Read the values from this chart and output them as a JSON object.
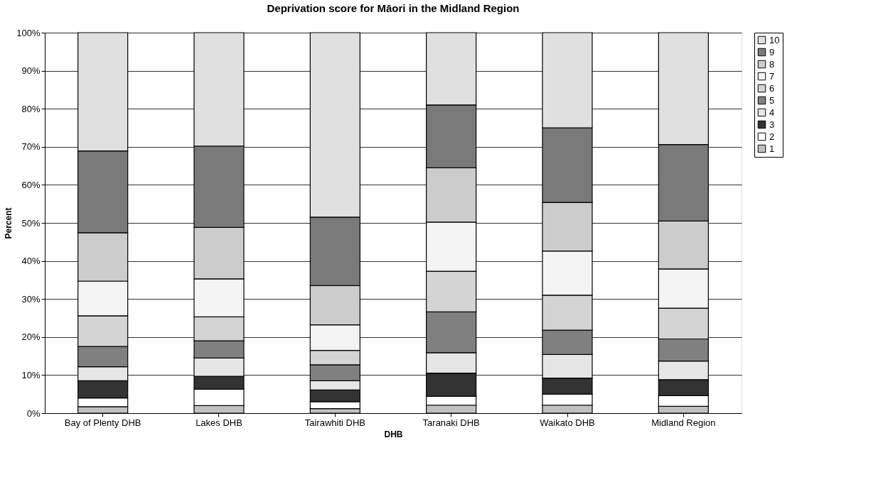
{
  "chart_data": {
    "type": "bar",
    "title": "Deprivation score for Māori in the Midland Region",
    "xlabel": "DHB",
    "ylabel": "Percent",
    "categories": [
      "Bay of Plenty DHB",
      "Lakes DHB",
      "Tairawhiti DHB",
      "Taranaki DHB",
      "Waikato DHB",
      "Midland Region"
    ],
    "stacked": true,
    "ylim": [
      0,
      100
    ],
    "yticks": [
      {
        "value": 0,
        "label": "0%"
      },
      {
        "value": 10,
        "label": "10%"
      },
      {
        "value": 20,
        "label": "20%"
      },
      {
        "value": 30,
        "label": "30%"
      },
      {
        "value": 40,
        "label": "40%"
      },
      {
        "value": 50,
        "label": "50%"
      },
      {
        "value": 60,
        "label": "60%"
      },
      {
        "value": 70,
        "label": "70%"
      },
      {
        "value": 80,
        "label": "80%"
      },
      {
        "value": 90,
        "label": "90%"
      },
      {
        "value": 100,
        "label": "100%"
      }
    ],
    "grid": "y",
    "legend": "right",
    "series": [
      {
        "name": "1",
        "color": "#c0c0c0",
        "values": [
          1.7,
          2.0,
          1.2,
          2.1,
          2.1,
          1.8
        ]
      },
      {
        "name": "2",
        "color": "#ffffff",
        "values": [
          2.3,
          4.3,
          1.8,
          2.3,
          2.9,
          2.8
        ]
      },
      {
        "name": "3",
        "color": "#333333",
        "values": [
          4.5,
          3.4,
          3.1,
          6.1,
          4.2,
          4.2
        ]
      },
      {
        "name": "4",
        "color": "#e6e6e6",
        "values": [
          3.7,
          4.8,
          2.4,
          5.4,
          6.2,
          4.9
        ]
      },
      {
        "name": "5",
        "color": "#808080",
        "values": [
          5.3,
          4.5,
          4.2,
          10.7,
          6.4,
          5.8
        ]
      },
      {
        "name": "6",
        "color": "#d4d4d4",
        "values": [
          8.1,
          6.3,
          3.8,
          10.7,
          9.2,
          8.1
        ]
      },
      {
        "name": "7",
        "color": "#f4f4f4",
        "values": [
          9.1,
          10.0,
          6.7,
          12.9,
          11.6,
          10.3
        ]
      },
      {
        "name": "8",
        "color": "#cccccc",
        "values": [
          12.7,
          13.5,
          10.3,
          14.3,
          12.8,
          12.6
        ]
      },
      {
        "name": "9",
        "color": "#7a7a7a",
        "values": [
          21.5,
          21.4,
          18.0,
          16.5,
          19.6,
          20.1
        ]
      },
      {
        "name": "10",
        "color": "#e0e0e0",
        "values": [
          31.1,
          29.8,
          48.5,
          19.0,
          25.0,
          29.4
        ]
      }
    ]
  }
}
